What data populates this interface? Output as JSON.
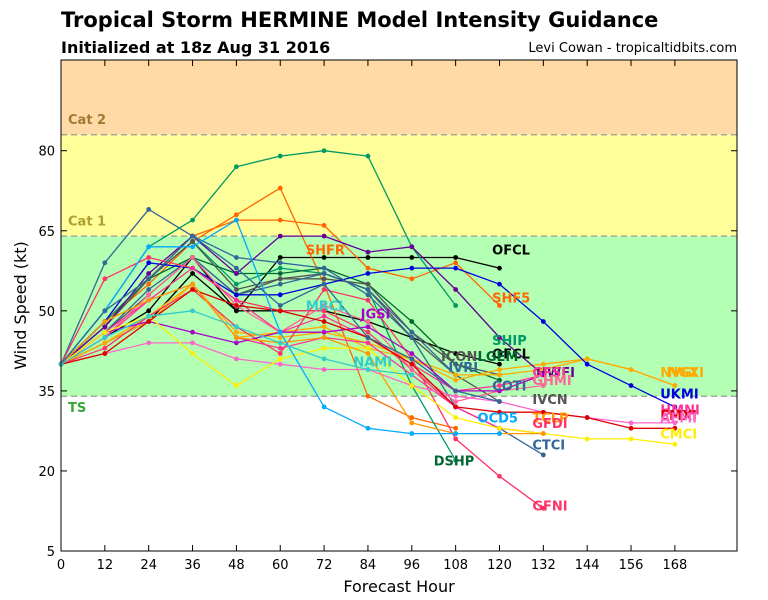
{
  "chart_data": {
    "type": "line",
    "title": "Tropical Storm HERMINE Model Intensity Guidance",
    "subtitle": "Initialized at 18z Aug 31 2016",
    "credit": "Levi Cowan - tropicaltidbits.com",
    "xlabel": "Forecast Hour",
    "ylabel": "Wind Speed (kt)",
    "xlim": [
      0,
      185
    ],
    "ylim": [
      5,
      97
    ],
    "x_ticks": [
      0,
      12,
      24,
      36,
      48,
      60,
      72,
      84,
      96,
      108,
      120,
      132,
      144,
      156,
      168
    ],
    "y_ticks": [
      5,
      20,
      35,
      50,
      65,
      80
    ],
    "grid": false,
    "bands": [
      {
        "name": "TS",
        "from": 34,
        "to": 64,
        "color": "#b3ffb3",
        "label_color": "#33aa33",
        "label_y": 31
      },
      {
        "name": "Cat 1",
        "from": 64,
        "to": 83,
        "color": "#ffff99",
        "label_color": "#b0a030",
        "label_y": 66
      },
      {
        "name": "Cat 2",
        "from": 83,
        "to": 97,
        "color": "#ffd9a6",
        "label_color": "#a07a30",
        "label_y": 85
      }
    ],
    "series": [
      {
        "name": "OFCL",
        "color": "#000000",
        "x": [
          0,
          12,
          24,
          36,
          48,
          60,
          72,
          84,
          96,
          108,
          120
        ],
        "y": [
          40,
          45,
          50,
          60,
          50,
          60,
          60,
          60,
          60,
          60,
          58
        ]
      },
      {
        "name": "OFCL",
        "color": "#000000",
        "x": [
          0,
          12,
          24,
          36,
          48,
          60,
          72,
          84,
          96,
          108,
          120
        ],
        "y": [
          40,
          44,
          48,
          57,
          50,
          50,
          50,
          48,
          45,
          42,
          40
        ]
      },
      {
        "name": "SHF5",
        "color": "#ff6600",
        "x": [
          0,
          12,
          24,
          36,
          48,
          60,
          72,
          84,
          96,
          108,
          120
        ],
        "y": [
          40,
          48,
          56,
          64,
          67,
          67,
          66,
          58,
          56,
          59,
          51
        ]
      },
      {
        "name": "SHFR",
        "color": "#ff6600",
        "x": [
          0,
          12,
          24,
          36,
          48,
          60,
          72,
          84,
          96,
          108
        ],
        "y": [
          40,
          48,
          55,
          63,
          68,
          73,
          55,
          34,
          30,
          28
        ]
      },
      {
        "name": "SHIP",
        "color": "#009966",
        "x": [
          0,
          12,
          24,
          36,
          48,
          60,
          72,
          84,
          96,
          108
        ],
        "y": [
          40,
          50,
          62,
          67,
          77,
          79,
          80,
          79,
          62,
          51
        ]
      },
      {
        "name": "DSHP",
        "color": "#009966",
        "x": [
          0,
          12,
          24,
          36,
          48,
          60,
          72,
          84,
          96,
          108
        ],
        "y": [
          40,
          48,
          56,
          63,
          55,
          58,
          57,
          54,
          36,
          22
        ]
      },
      {
        "name": "LGEM",
        "color": "#006633",
        "x": [
          0,
          12,
          24,
          36,
          48,
          60,
          72,
          84,
          96,
          108,
          120
        ],
        "y": [
          40,
          47,
          56,
          60,
          57,
          57,
          58,
          55,
          48,
          40,
          37
        ]
      },
      {
        "name": "ICON",
        "color": "#555555",
        "x": [
          0,
          12,
          24,
          36,
          48,
          60,
          72,
          84,
          96,
          108,
          120
        ],
        "y": [
          40,
          47,
          56,
          63,
          54,
          56,
          56,
          55,
          46,
          40,
          38
        ]
      },
      {
        "name": "IVCN",
        "color": "#555555",
        "x": [
          0,
          12,
          24,
          36,
          48,
          60,
          72,
          84,
          96,
          108,
          120
        ],
        "y": [
          40,
          46,
          53,
          60,
          53,
          56,
          57,
          54,
          45,
          38,
          33
        ]
      },
      {
        "name": "IVRI",
        "color": "#336699",
        "x": [
          0,
          12,
          24,
          36,
          48,
          60,
          72,
          84,
          96,
          108
        ],
        "y": [
          40,
          46,
          54,
          60,
          53,
          55,
          57,
          54,
          46,
          38
        ]
      },
      {
        "name": "NVGI",
        "color": "#ffaa00",
        "x": [
          0,
          12,
          24,
          36,
          48,
          60,
          72,
          84,
          96,
          108,
          120,
          132,
          144,
          156,
          168
        ],
        "y": [
          40,
          44,
          48,
          55,
          45,
          46,
          47,
          43,
          41,
          37,
          39,
          40,
          41,
          39,
          36
        ]
      },
      {
        "name": "NGXI",
        "color": "#ffaa00",
        "x": [
          0,
          12,
          24,
          36,
          48,
          60,
          72,
          84,
          96,
          108,
          120,
          132,
          144,
          156,
          168
        ],
        "y": [
          40,
          44,
          49,
          55,
          46,
          45,
          46,
          44,
          41,
          38,
          38,
          39,
          41,
          39,
          36
        ]
      },
      {
        "name": "UKMI",
        "color": "#0000dd",
        "x": [
          0,
          12,
          24,
          36,
          48,
          60,
          72,
          84,
          96,
          108,
          120,
          132,
          144,
          156,
          168
        ],
        "y": [
          40,
          48,
          59,
          58,
          53,
          53,
          55,
          57,
          58,
          58,
          55,
          48,
          40,
          36,
          32
        ]
      },
      {
        "name": "CTCI",
        "color": "#336699",
        "x": [
          0,
          12,
          24,
          36,
          48,
          60,
          72,
          84,
          96,
          108,
          120,
          132
        ],
        "y": [
          40,
          59,
          69,
          64,
          60,
          59,
          58,
          53,
          45,
          32,
          28,
          23
        ]
      },
      {
        "name": "HWFI",
        "color": "#660099",
        "x": [
          0,
          12,
          24,
          36,
          48,
          60,
          72,
          84,
          96,
          108,
          120,
          132
        ],
        "y": [
          40,
          47,
          57,
          64,
          57,
          64,
          64,
          61,
          62,
          54,
          45,
          38
        ]
      },
      {
        "name": "GFDI",
        "color": "#ff3366",
        "x": [
          0,
          12,
          24,
          36,
          48,
          60,
          72,
          84,
          96,
          108,
          120,
          132
        ],
        "y": [
          40,
          56,
          60,
          58,
          52,
          50,
          50,
          46,
          39,
          32,
          28,
          27
        ]
      },
      {
        "name": "GFNI",
        "color": "#ff3366",
        "x": [
          0,
          12,
          24,
          36,
          48,
          60,
          72,
          84,
          96,
          108,
          120,
          132
        ],
        "y": [
          40,
          43,
          49,
          54,
          47,
          42,
          54,
          52,
          41,
          26,
          19,
          13
        ]
      },
      {
        "name": "GHMI",
        "color": "#ff6699",
        "x": [
          0,
          12,
          24,
          36,
          48,
          60,
          72,
          84,
          96,
          108,
          120,
          132
        ],
        "y": [
          40,
          45,
          53,
          60,
          51,
          46,
          51,
          48,
          39,
          33,
          35,
          36
        ]
      },
      {
        "name": "HMNI",
        "color": "#ff3399",
        "x": [
          0,
          12,
          24,
          36,
          48,
          60,
          72,
          84,
          96,
          108,
          120,
          132
        ],
        "y": [
          40,
          45,
          52,
          58,
          52,
          46,
          49,
          45,
          40,
          35,
          36,
          38
        ]
      },
      {
        "name": "HMNI",
        "color": "#ff3399",
        "x": [
          0,
          12,
          24,
          36,
          48,
          60,
          72,
          84,
          96,
          108,
          120
        ],
        "y": [
          40,
          46,
          52,
          55,
          45,
          43,
          45,
          44,
          38,
          32,
          28
        ]
      },
      {
        "name": "GFSI",
        "color": "#aa00cc",
        "x": [
          0,
          12,
          24,
          36,
          48,
          60,
          72,
          84,
          96,
          108,
          120,
          132
        ],
        "y": [
          40,
          46,
          48,
          46,
          44,
          46,
          46,
          47,
          42,
          35,
          35,
          38
        ]
      },
      {
        "name": "AEMI",
        "color": "#ff66cc",
        "x": [
          0,
          12,
          24,
          36,
          48,
          60,
          72,
          84,
          96,
          108,
          120,
          132,
          144,
          156,
          168
        ],
        "y": [
          40,
          42,
          44,
          44,
          41,
          40,
          39,
          39,
          36,
          34,
          33,
          31,
          30,
          29,
          29
        ]
      },
      {
        "name": "CMCI",
        "color": "#ffee00",
        "x": [
          0,
          12,
          24,
          36,
          48,
          60,
          72,
          84,
          96,
          108,
          120,
          132,
          144,
          156,
          168
        ],
        "y": [
          40,
          46,
          49,
          42,
          36,
          41,
          43,
          43,
          36,
          30,
          28,
          27,
          26,
          26,
          25
        ]
      },
      {
        "name": "EMXI",
        "color": "#dd0000",
        "x": [
          0,
          12,
          24,
          36,
          48,
          60,
          72,
          84,
          96,
          108,
          120,
          132,
          144,
          156,
          168
        ],
        "y": [
          40,
          42,
          48,
          54,
          51,
          50,
          48,
          45,
          40,
          32,
          31,
          31,
          30,
          28,
          28
        ]
      },
      {
        "name": "TCLP",
        "color": "#ff9900",
        "x": [
          0,
          12,
          24,
          36,
          48,
          60,
          72,
          84,
          96,
          108,
          120,
          132
        ],
        "y": [
          40,
          48,
          52,
          55,
          45,
          44,
          45,
          42,
          29,
          27,
          27,
          27
        ]
      },
      {
        "name": "OCD5",
        "color": "#00aaff",
        "x": [
          0,
          12,
          24,
          36,
          48,
          60,
          72,
          84,
          96,
          108,
          120
        ],
        "y": [
          40,
          50,
          62,
          62,
          67,
          46,
          32,
          28,
          27,
          27,
          27
        ]
      },
      {
        "name": "COTI",
        "color": "#336699",
        "x": [
          0,
          12,
          24,
          36,
          48,
          60,
          72,
          84,
          96,
          108,
          120
        ],
        "y": [
          40,
          50,
          56,
          64,
          58,
          51,
          55,
          45,
          41,
          35,
          33
        ]
      },
      {
        "name": "MRCL",
        "color": "#33cccc",
        "x": [
          0,
          12,
          24,
          36,
          48,
          60,
          72,
          84,
          96
        ],
        "y": [
          40,
          45,
          49,
          50,
          47,
          44,
          41,
          39,
          38
        ]
      }
    ],
    "labels": [
      {
        "text": "OFCL",
        "x": 118,
        "y": 61.5,
        "color": "#000000"
      },
      {
        "text": "SHFR",
        "x": 67,
        "y": 61.5,
        "color": "#ff6600"
      },
      {
        "text": "SHF5",
        "x": 118,
        "y": 52.5,
        "color": "#ff6600"
      },
      {
        "text": "MRCL",
        "x": 67,
        "y": 51,
        "color": "#33cccc"
      },
      {
        "text": "JGSI",
        "x": 82,
        "y": 49.5,
        "color": "#aa00cc"
      },
      {
        "text": "SHIP",
        "x": 118,
        "y": 44.5,
        "color": "#009966"
      },
      {
        "text": "OFCL",
        "x": 118,
        "y": 42,
        "color": "#000000"
      },
      {
        "text": "ICON",
        "x": 104,
        "y": 41.5,
        "color": "#555555"
      },
      {
        "text": "LGEM",
        "x": 114,
        "y": 41.5,
        "color": "#006633"
      },
      {
        "text": "IVRI",
        "x": 106,
        "y": 39.5,
        "color": "#336699"
      },
      {
        "text": "NAMI",
        "x": 80,
        "y": 40.5,
        "color": "#33cccc"
      },
      {
        "text": "HWFI",
        "x": 130,
        "y": 38.5,
        "color": "#660099"
      },
      {
        "text": "GFSI",
        "x": 129,
        "y": 38.5,
        "color": "#ff3399"
      },
      {
        "text": "GHMI",
        "x": 129,
        "y": 37,
        "color": "#ff6699"
      },
      {
        "text": "COTI",
        "x": 118,
        "y": 36,
        "color": "#336699"
      },
      {
        "text": "NVGI",
        "x": 164,
        "y": 38.5,
        "color": "#ffaa00"
      },
      {
        "text": "NGXI",
        "x": 166,
        "y": 38.5,
        "color": "#ffaa00"
      },
      {
        "text": "UKMI",
        "x": 164,
        "y": 34.5,
        "color": "#0000dd"
      },
      {
        "text": "IVCN",
        "x": 129,
        "y": 33.5,
        "color": "#555555"
      },
      {
        "text": "TCLP",
        "x": 129,
        "y": 30,
        "color": "#ff9900"
      },
      {
        "text": "GFDI",
        "x": 129,
        "y": 29,
        "color": "#ff3366"
      },
      {
        "text": "OCD5",
        "x": 114,
        "y": 30,
        "color": "#00aaff"
      },
      {
        "text": "HMNI",
        "x": 164,
        "y": 31.5,
        "color": "#ff3399"
      },
      {
        "text": "EMXI",
        "x": 164,
        "y": 30.5,
        "color": "#dd0000"
      },
      {
        "text": "AEMI",
        "x": 164,
        "y": 30,
        "color": "#ff66cc"
      },
      {
        "text": "CMCI",
        "x": 164,
        "y": 27,
        "color": "#ffee00"
      },
      {
        "text": "CTCI",
        "x": 129,
        "y": 25,
        "color": "#336699"
      },
      {
        "text": "DSHP",
        "x": 102,
        "y": 22,
        "color": "#006633"
      },
      {
        "text": "GFNI",
        "x": 129,
        "y": 13.5,
        "color": "#ff3366"
      }
    ]
  }
}
